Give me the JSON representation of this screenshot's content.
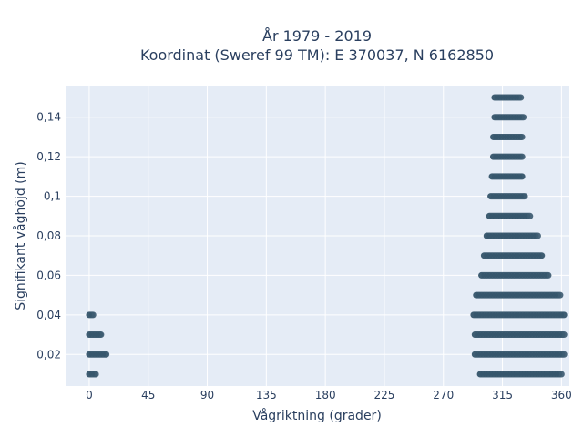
{
  "chart_data": {
    "type": "scatter",
    "title": "År 1979 - 2019",
    "subtitle": "Koordinat (Sweref 99 TM): E 370037, N 6162850",
    "xlabel": "Vågriktning (grader)",
    "ylabel": "Signifikant våghöjd (m)",
    "xlim": [
      -18,
      366
    ],
    "ylim": [
      0.004,
      0.156
    ],
    "x_ticks": [
      0,
      45,
      90,
      135,
      180,
      225,
      270,
      315,
      360
    ],
    "x_tick_labels": [
      "0",
      "45",
      "90",
      "135",
      "180",
      "225",
      "270",
      "315",
      "360"
    ],
    "y_ticks": [
      0.02,
      0.04,
      0.06,
      0.08,
      0.1,
      0.12,
      0.14
    ],
    "y_tick_labels": [
      "0,02",
      "0,04",
      "0,06",
      "0,08",
      "0,1",
      "0,12",
      "0,14"
    ],
    "grid": true,
    "marker_color": "#2f4f66",
    "plot_bgcolor": "#e5ecf6",
    "series": [
      {
        "points": [
          {
            "y": 0.01,
            "x_min": 0,
            "x_max": 5
          },
          {
            "y": 0.02,
            "x_min": 0,
            "x_max": 13
          },
          {
            "y": 0.03,
            "x_min": 0,
            "x_max": 9
          },
          {
            "y": 0.04,
            "x_min": 0,
            "x_max": 3
          },
          {
            "y": 0.01,
            "x_min": 298,
            "x_max": 360
          },
          {
            "y": 0.02,
            "x_min": 294,
            "x_max": 362
          },
          {
            "y": 0.03,
            "x_min": 294,
            "x_max": 362
          },
          {
            "y": 0.04,
            "x_min": 293,
            "x_max": 362
          },
          {
            "y": 0.05,
            "x_min": 295,
            "x_max": 359
          },
          {
            "y": 0.06,
            "x_min": 299,
            "x_max": 350
          },
          {
            "y": 0.07,
            "x_min": 301,
            "x_max": 345
          },
          {
            "y": 0.08,
            "x_min": 303,
            "x_max": 342
          },
          {
            "y": 0.09,
            "x_min": 305,
            "x_max": 336
          },
          {
            "y": 0.1,
            "x_min": 306,
            "x_max": 332
          },
          {
            "y": 0.11,
            "x_min": 307,
            "x_max": 330
          },
          {
            "y": 0.12,
            "x_min": 308,
            "x_max": 330
          },
          {
            "y": 0.13,
            "x_min": 308,
            "x_max": 330
          },
          {
            "y": 0.14,
            "x_min": 309,
            "x_max": 331
          },
          {
            "y": 0.15,
            "x_min": 309,
            "x_max": 329
          }
        ]
      }
    ]
  }
}
